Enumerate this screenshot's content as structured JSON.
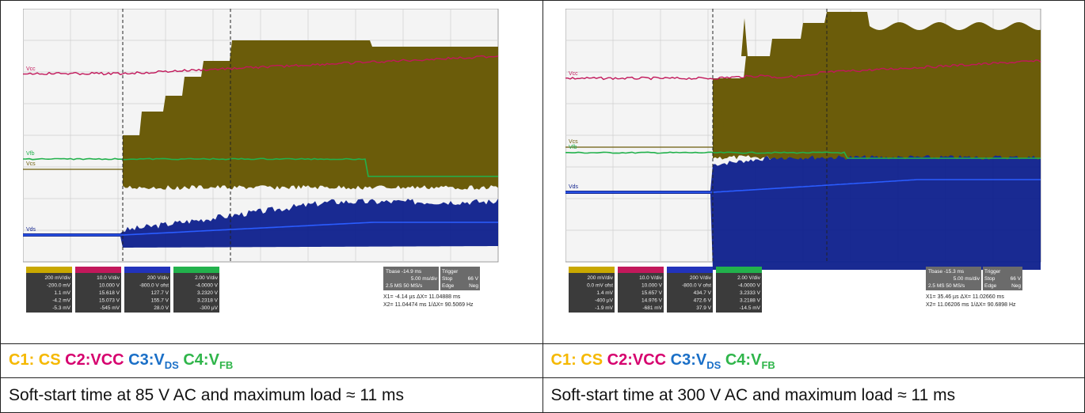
{
  "panels": [
    {
      "legend": {
        "c1": "C1: CS",
        "c2": "C2:VCC",
        "c3_prefix": "C3:V",
        "c3_sub": "DS",
        "c4_prefix": "C4:V",
        "c4_sub": "FB"
      },
      "caption": "Soft-start time at 85 V AC and maximum load ≈ 11 ms",
      "channel_labels": {
        "vcc": "Vcc",
        "vfb": "Vfb",
        "vcs": "Vcs",
        "vds": "Vds"
      },
      "readout": {
        "ch1": [
          "200 mV/div",
          "-200.0 mV",
          "1.1 mV",
          "-4.2 mV",
          "-5.3 mV"
        ],
        "ch2": [
          "10.0 V/div",
          "10.000 V",
          "15.618 V",
          "15.073 V",
          "-545 mV"
        ],
        "ch3": [
          "200 V/div",
          "-800.0 V ofst",
          "127.7 V",
          "155.7 V",
          "28.0 V"
        ],
        "ch4": [
          "2.00 V/div",
          "-4.0000 V",
          "3.2320 V",
          "3.2318 V",
          "-300 µV"
        ]
      },
      "timebase": {
        "tbase": "Tbase -14.9 ms",
        "trigger": "Trigger",
        "tdiv": "5.00 ms/div",
        "stop": "Stop",
        "stop_val": "66 V",
        "sample": "2.5 MS  50 MS/s",
        "edge": "Edge",
        "edge_val": "Neg",
        "x1": "X1=   -4.14 µs   ΔX=  11.04888 ms",
        "x2": "X2=  11.04474 ms  1/ΔX=   90.5069 Hz"
      },
      "chart_data": {
        "type": "line",
        "x_unit": "ms",
        "x_per_div": 5,
        "divisions": [
          10,
          8
        ],
        "cursor_delta_ms": 11.04888,
        "series": [
          {
            "name": "C1: CS",
            "color": "#6b5c0a"
          },
          {
            "name": "C2:VCC",
            "color": "#c2185b"
          },
          {
            "name": "C3:VDS",
            "color": "#0d1f8c"
          },
          {
            "name": "C4:VFB",
            "color": "#22b14c"
          }
        ]
      }
    },
    {
      "legend": {
        "c1": "C1: CS",
        "c2": "C2:VCC",
        "c3_prefix": "C3:V",
        "c3_sub": "DS",
        "c4_prefix": "C4:V",
        "c4_sub": "FB"
      },
      "caption": "Soft-start time at 300 V AC and maximum load ≈ 11 ms",
      "channel_labels": {
        "vcc": "Vcc",
        "vfb": "Vfb",
        "vcs": "Vcs",
        "vds": "Vds"
      },
      "readout": {
        "ch1": [
          "200 mV/div",
          "0.0 mV ofst",
          "1.4 mV",
          "-400 µV",
          "-1.9 mV"
        ],
        "ch2": [
          "10.0 V/div",
          "10.000 V",
          "15.657 V",
          "14.976 V",
          "-681 mV"
        ],
        "ch3": [
          "200 V/div",
          "-800.0 V ofst",
          "434.7 V",
          "472.6 V",
          "37.9 V"
        ],
        "ch4": [
          "2.00 V/div",
          "-4.0000 V",
          "3.2333 V",
          "3.2188 V",
          "-14.5 mV"
        ]
      },
      "timebase": {
        "tbase": "Tbase -15.3 ms",
        "trigger": "Trigger",
        "tdiv": "5.00 ms/div",
        "stop": "Stop",
        "stop_val": "66 V",
        "sample": "2.5 MS  50 MS/s",
        "edge": "Edge",
        "edge_val": "Neg",
        "x1": "X1=   35.46 µs   ΔX=  11.02660 ms",
        "x2": "X2=  11.06206 ms  1/ΔX=   90.6898 Hz"
      },
      "chart_data": {
        "type": "line",
        "x_unit": "ms",
        "x_per_div": 5,
        "divisions": [
          10,
          8
        ],
        "cursor_delta_ms": 11.0266,
        "series": [
          {
            "name": "C1: CS",
            "color": "#6b5c0a"
          },
          {
            "name": "C2:VCC",
            "color": "#c2185b"
          },
          {
            "name": "C3:VDS",
            "color": "#0d1f8c"
          },
          {
            "name": "C4:VFB",
            "color": "#22b14c"
          }
        ]
      }
    }
  ]
}
